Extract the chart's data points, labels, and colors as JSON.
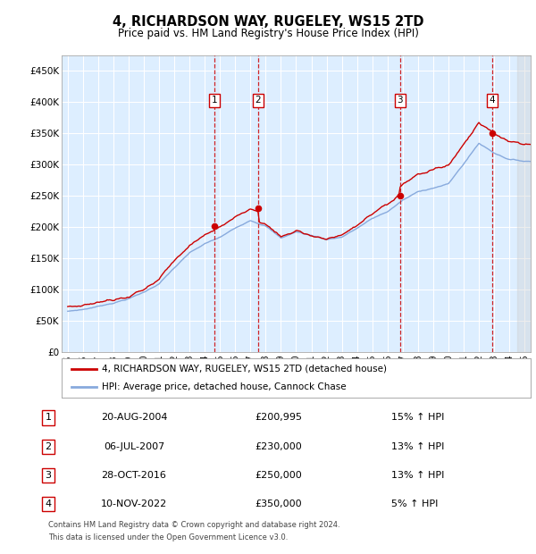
{
  "title": "4, RICHARDSON WAY, RUGELEY, WS15 2TD",
  "subtitle": "Price paid vs. HM Land Registry's House Price Index (HPI)",
  "legend_label_red": "4, RICHARDSON WAY, RUGELEY, WS15 2TD (detached house)",
  "legend_label_blue": "HPI: Average price, detached house, Cannock Chase",
  "footer1": "Contains HM Land Registry data © Crown copyright and database right 2024.",
  "footer2": "This data is licensed under the Open Government Licence v3.0.",
  "transactions": [
    {
      "num": 1,
      "date": "20-AUG-2004",
      "price": 200995,
      "pct": "15%",
      "date_x": 2004.63
    },
    {
      "num": 2,
      "date": "06-JUL-2007",
      "price": 230000,
      "pct": "13%",
      "date_x": 2007.51
    },
    {
      "num": 3,
      "date": "28-OCT-2016",
      "price": 250000,
      "pct": "13%",
      "date_x": 2016.83
    },
    {
      "num": 4,
      "date": "10-NOV-2022",
      "price": 350000,
      "pct": "5%",
      "date_x": 2022.86
    }
  ],
  "ylim": [
    0,
    475000
  ],
  "xlim": [
    1994.6,
    2025.4
  ],
  "yticks": [
    0,
    50000,
    100000,
    150000,
    200000,
    250000,
    300000,
    350000,
    400000,
    450000
  ],
  "ytick_labels": [
    "£0",
    "£50K",
    "£100K",
    "£150K",
    "£200K",
    "£250K",
    "£300K",
    "£350K",
    "£400K",
    "£450K"
  ],
  "xtick_years": [
    1995,
    1996,
    1997,
    1998,
    1999,
    2000,
    2001,
    2002,
    2003,
    2004,
    2005,
    2006,
    2007,
    2008,
    2009,
    2010,
    2011,
    2012,
    2013,
    2014,
    2015,
    2016,
    2017,
    2018,
    2019,
    2020,
    2021,
    2022,
    2023,
    2024,
    2025
  ],
  "red_color": "#cc0000",
  "blue_color": "#88aadd",
  "background_color": "#ddeeff",
  "grid_color": "#ffffff"
}
